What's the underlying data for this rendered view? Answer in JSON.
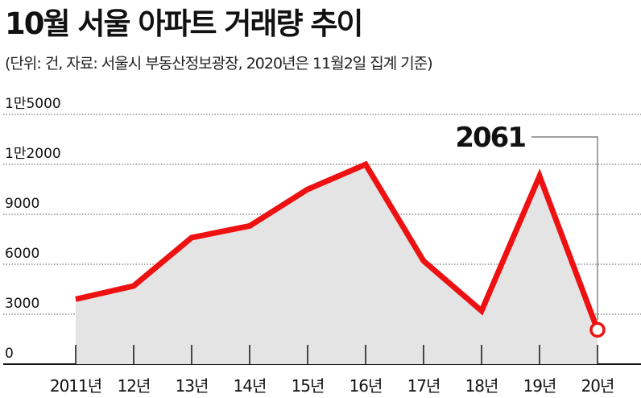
{
  "chart_data": {
    "type": "line",
    "title": "10월 서울 아파트 거래량 추이",
    "subtitle": "(단위: 건, 자료: 서울시 부동산정보광장, 2020년은 11월2일 집계 기준)",
    "categories": [
      "2011년",
      "12년",
      "13년",
      "14년",
      "15년",
      "16년",
      "17년",
      "18년",
      "19년",
      "20년"
    ],
    "values": [
      3900,
      4700,
      7600,
      8300,
      10500,
      12000,
      6200,
      3200,
      11300,
      2061
    ],
    "ylim": [
      0,
      15000
    ],
    "yticks": [
      {
        "value": 15000,
        "label": "1만5000"
      },
      {
        "value": 12000,
        "label": "1만2000"
      },
      {
        "value": 9000,
        "label": "9000"
      },
      {
        "value": 6000,
        "label": "6000"
      },
      {
        "value": 3000,
        "label": "3000"
      },
      {
        "value": 0,
        "label": "0"
      }
    ],
    "annotation": {
      "category": "20년",
      "label": "2061"
    },
    "grid": true,
    "colors": {
      "line": "#ee1111",
      "area": "#e4e4e4",
      "grid": "#555555"
    }
  }
}
